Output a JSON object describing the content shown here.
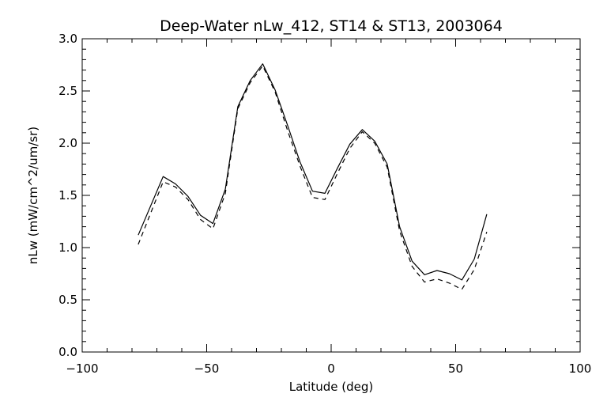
{
  "chart_data": {
    "type": "line",
    "title": "Deep-Water nLw_412, ST14 & ST13, 2003064",
    "xlabel": "Latitude (deg)",
    "ylabel": "nLw (mW/cm^2/um/sr)",
    "xlim": [
      -100,
      100
    ],
    "ylim": [
      0.0,
      3.0
    ],
    "xticks": [
      -100,
      -50,
      0,
      50,
      100
    ],
    "xtick_labels": [
      "−100",
      "−50",
      "0",
      "50",
      "100"
    ],
    "yticks": [
      0.0,
      0.5,
      1.0,
      1.5,
      2.0,
      2.5,
      3.0
    ],
    "ytick_labels": [
      "0.0",
      "0.5",
      "1.0",
      "1.5",
      "2.0",
      "2.5",
      "3.0"
    ],
    "grid": false,
    "legend": "none",
    "series": [
      {
        "style": "solid",
        "color": "#000000",
        "x": [
          -77.5,
          -67.5,
          -62.5,
          -57.5,
          -52.5,
          -47.5,
          -42.5,
          -37.5,
          -32.5,
          -27.5,
          -22.5,
          -17.5,
          -12.5,
          -7.5,
          -2.5,
          2.5,
          7.5,
          12.5,
          17.5,
          22.5,
          27.5,
          32.5,
          37.5,
          42.5,
          47.5,
          52.5,
          57.5,
          62.5
        ],
        "y": [
          1.12,
          1.68,
          1.61,
          1.49,
          1.31,
          1.23,
          1.56,
          2.35,
          2.6,
          2.76,
          2.51,
          2.17,
          1.82,
          1.54,
          1.52,
          1.76,
          1.99,
          2.13,
          2.02,
          1.8,
          1.2,
          0.87,
          0.74,
          0.78,
          0.75,
          0.69,
          0.89,
          1.32
        ]
      },
      {
        "style": "dashed",
        "color": "#000000",
        "x": [
          -77.5,
          -67.5,
          -62.5,
          -57.5,
          -52.5,
          -47.5,
          -42.5,
          -37.5,
          -32.5,
          -27.5,
          -22.5,
          -17.5,
          -12.5,
          -7.5,
          -2.5,
          2.5,
          7.5,
          12.5,
          17.5,
          22.5,
          27.5,
          32.5,
          37.5,
          42.5,
          47.5,
          52.5,
          57.5,
          62.5
        ],
        "y": [
          1.03,
          1.63,
          1.58,
          1.46,
          1.27,
          1.18,
          1.52,
          2.33,
          2.58,
          2.74,
          2.49,
          2.12,
          1.78,
          1.48,
          1.46,
          1.71,
          1.95,
          2.11,
          2.0,
          1.77,
          1.16,
          0.82,
          0.67,
          0.7,
          0.66,
          0.6,
          0.79,
          1.15
        ]
      }
    ]
  }
}
